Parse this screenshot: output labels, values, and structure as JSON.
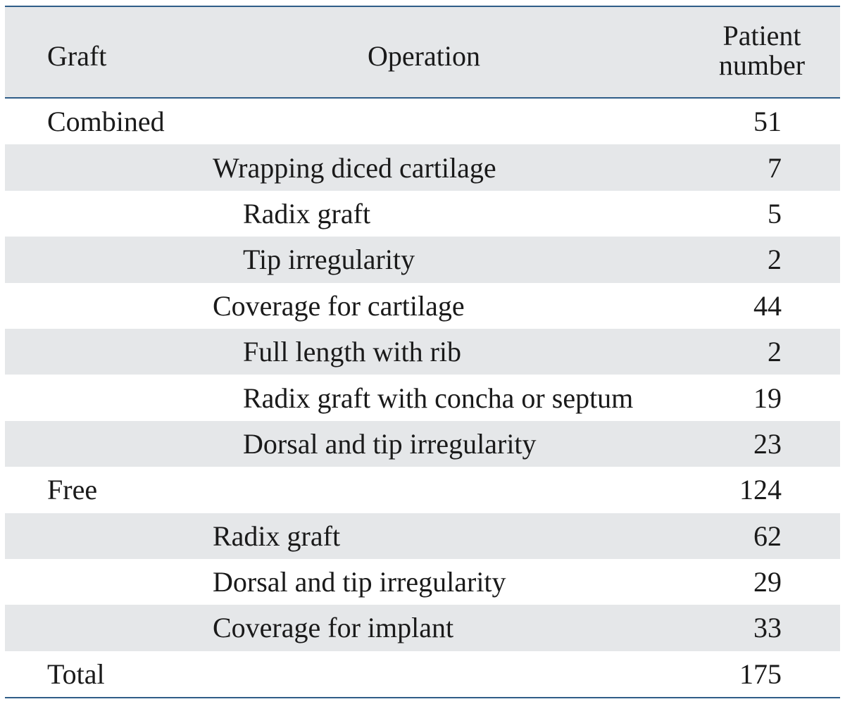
{
  "header": {
    "graft": "Graft",
    "operation": "Operation",
    "patient_line1": "Patient",
    "patient_line2": "number"
  },
  "rows": [
    {
      "graft": "Combined",
      "operation": "",
      "number": "51",
      "indent": 0
    },
    {
      "graft": "",
      "operation": "Wrapping diced cartilage",
      "number": "7",
      "indent": 1
    },
    {
      "graft": "",
      "operation": "Radix graft",
      "number": "5",
      "indent": 2
    },
    {
      "graft": "",
      "operation": "Tip irregularity",
      "number": "2",
      "indent": 2
    },
    {
      "graft": "",
      "operation": "Coverage for cartilage",
      "number": "44",
      "indent": 1
    },
    {
      "graft": "",
      "operation": "Full length with rib",
      "number": "2",
      "indent": 2
    },
    {
      "graft": "",
      "operation": "Radix graft with concha or septum",
      "number": "19",
      "indent": 2
    },
    {
      "graft": "",
      "operation": "Dorsal and tip irregularity",
      "number": "23",
      "indent": 2
    },
    {
      "graft": "Free",
      "operation": "",
      "number": "124",
      "indent": 0
    },
    {
      "graft": "",
      "operation": "Radix graft",
      "number": "62",
      "indent": 1
    },
    {
      "graft": "",
      "operation": "Dorsal and tip irregularity",
      "number": "29",
      "indent": 1
    },
    {
      "graft": "",
      "operation": "Coverage for implant",
      "number": "33",
      "indent": 1
    },
    {
      "graft": "Total",
      "operation": "",
      "number": "175",
      "indent": 0
    }
  ],
  "colors": {
    "rule": "#2f5d88",
    "shade": "#e5e7e9"
  }
}
